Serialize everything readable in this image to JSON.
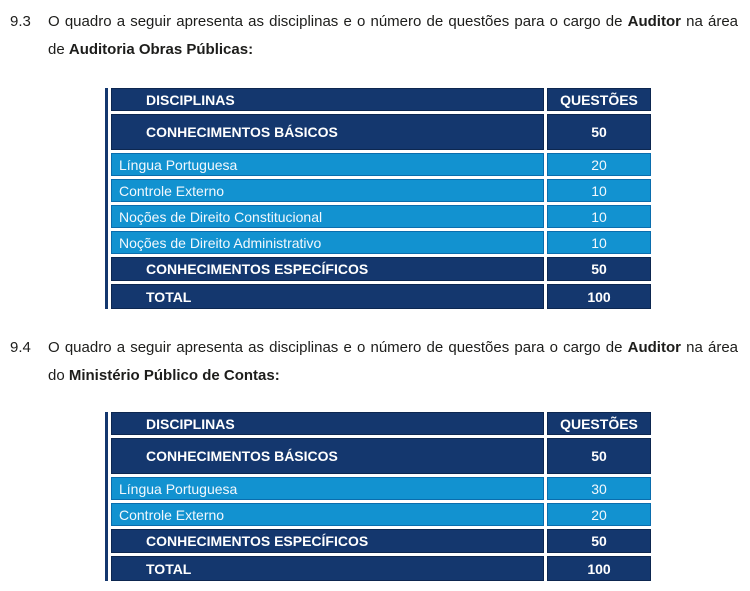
{
  "page": {
    "colors": {
      "dark_blue": "#14376e",
      "light_blue": "#1292d0",
      "text": "#1d1d1b",
      "cell_text": "#ffffff"
    }
  },
  "sections": [
    {
      "number": "9.3",
      "paragraph": {
        "part1": "O quadro a seguir apresenta as disciplinas e o número de questões para o cargo de",
        "bold1": "Auditor",
        "part2": "na área de",
        "bold2": "Auditoria Obras Públicas:"
      },
      "table": {
        "headers": {
          "disciplines": "DISCIPLINAS",
          "questions": "QUESTÕES"
        },
        "rows": [
          {
            "label": "CONHECIMENTOS BÁSICOS",
            "value": "50"
          },
          {
            "label": "Língua Portuguesa",
            "value": "20"
          },
          {
            "label": "Controle Externo",
            "value": "10"
          },
          {
            "label": "Noções de Direito Constitucional",
            "value": "10"
          },
          {
            "label": "Noções de Direito Administrativo",
            "value": "10"
          },
          {
            "label": "CONHECIMENTOS ESPECÍFICOS",
            "value": "50"
          },
          {
            "label": "TOTAL",
            "value": "100"
          }
        ]
      }
    },
    {
      "number": "9.4",
      "paragraph": {
        "part1": "O quadro a seguir apresenta as disciplinas e o número de questões para o cargo de",
        "bold1": "Auditor",
        "part2": "na área do",
        "bold2": "Ministério Público de Contas:"
      },
      "table": {
        "headers": {
          "disciplines": "DISCIPLINAS",
          "questions": "QUESTÕES"
        },
        "rows": [
          {
            "label": "CONHECIMENTOS BÁSICOS",
            "value": "50"
          },
          {
            "label": "Língua Portuguesa",
            "value": "30"
          },
          {
            "label": "Controle Externo",
            "value": "20"
          },
          {
            "label": "CONHECIMENTOS ESPECÍFICOS",
            "value": "50"
          },
          {
            "label": "TOTAL",
            "value": "100"
          }
        ]
      }
    }
  ]
}
